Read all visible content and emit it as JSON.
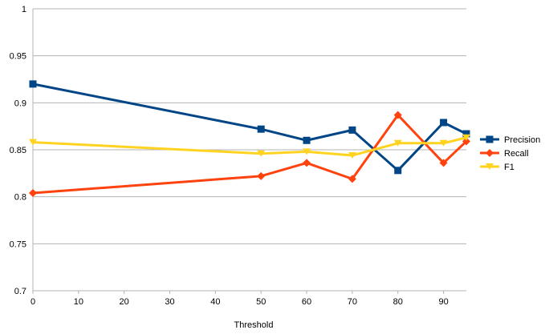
{
  "chart_data": {
    "type": "line",
    "title": "",
    "xlabel": "Threshold",
    "ylabel": "",
    "x": [
      0,
      50,
      60,
      70,
      80,
      90,
      95
    ],
    "xlim": [
      0,
      95
    ],
    "ylim": [
      0.7,
      1
    ],
    "x_ticks": [
      0,
      10,
      20,
      30,
      40,
      50,
      60,
      70,
      80,
      90
    ],
    "y_ticks": [
      0.7,
      0.75,
      0.8,
      0.85,
      0.9,
      0.95,
      1
    ],
    "y_tick_labels": [
      "0.7",
      "0.75",
      "0.8",
      "0.85",
      "0.9",
      "0.95",
      "1"
    ],
    "grid": "horizontal",
    "legend_position": "right",
    "series": [
      {
        "name": "Precision",
        "color": "#004586",
        "marker": "square",
        "values": [
          0.92,
          0.872,
          0.86,
          0.871,
          0.828,
          0.879,
          0.867
        ]
      },
      {
        "name": "Recall",
        "color": "#ff420e",
        "marker": "diamond",
        "values": [
          0.804,
          0.822,
          0.836,
          0.819,
          0.887,
          0.836,
          0.859
        ]
      },
      {
        "name": "F1",
        "color": "#ffd320",
        "marker": "triangle-down",
        "values": [
          0.858,
          0.846,
          0.848,
          0.844,
          0.857,
          0.857,
          0.863
        ]
      }
    ]
  }
}
